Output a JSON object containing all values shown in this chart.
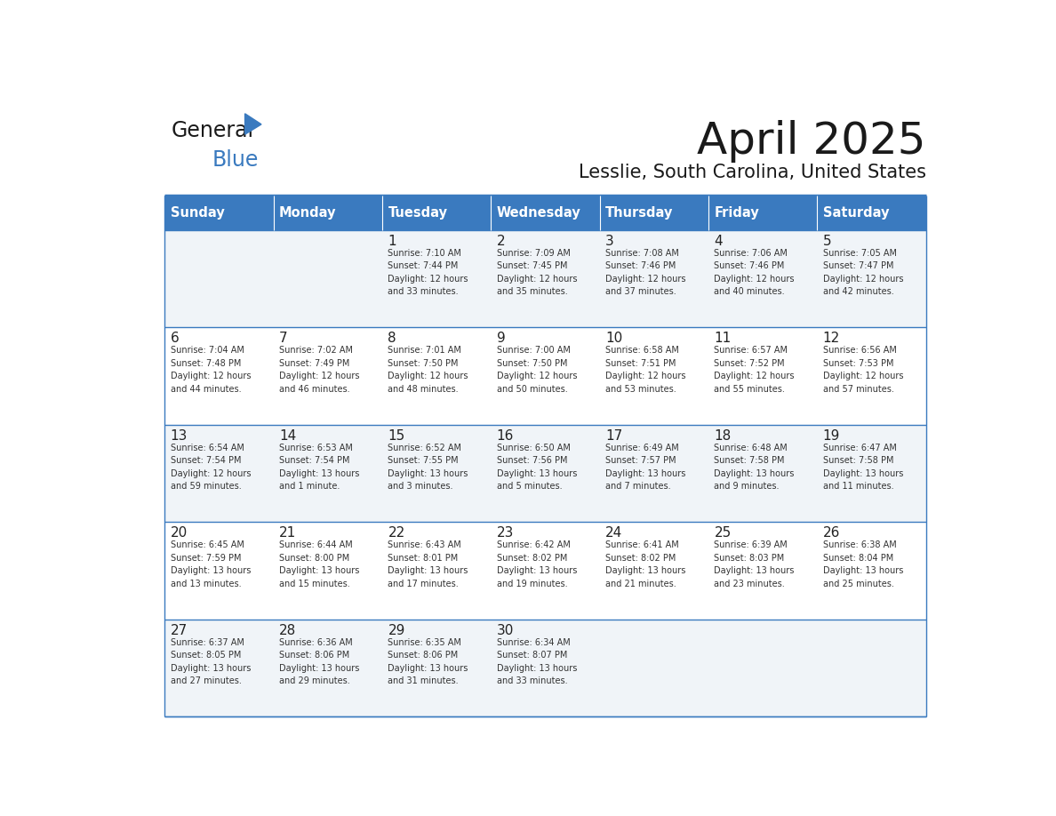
{
  "title": "April 2025",
  "subtitle": "Lesslie, South Carolina, United States",
  "header_bg": "#3a7abf",
  "header_text_color": "#ffffff",
  "days_of_week": [
    "Sunday",
    "Monday",
    "Tuesday",
    "Wednesday",
    "Thursday",
    "Friday",
    "Saturday"
  ],
  "row_bg_odd": "#f0f4f8",
  "row_bg_even": "#ffffff",
  "cell_text_color": "#333333",
  "day_num_color": "#222222",
  "title_color": "#1a1a1a",
  "subtitle_color": "#1a1a1a",
  "divider_color": "#3a7abf",
  "logo_text_color": "#1a1a1a",
  "logo_blue_color": "#3a7abf",
  "calendar_data": [
    [
      {
        "day": null,
        "info": null
      },
      {
        "day": null,
        "info": null
      },
      {
        "day": 1,
        "info": "Sunrise: 7:10 AM\nSunset: 7:44 PM\nDaylight: 12 hours\nand 33 minutes."
      },
      {
        "day": 2,
        "info": "Sunrise: 7:09 AM\nSunset: 7:45 PM\nDaylight: 12 hours\nand 35 minutes."
      },
      {
        "day": 3,
        "info": "Sunrise: 7:08 AM\nSunset: 7:46 PM\nDaylight: 12 hours\nand 37 minutes."
      },
      {
        "day": 4,
        "info": "Sunrise: 7:06 AM\nSunset: 7:46 PM\nDaylight: 12 hours\nand 40 minutes."
      },
      {
        "day": 5,
        "info": "Sunrise: 7:05 AM\nSunset: 7:47 PM\nDaylight: 12 hours\nand 42 minutes."
      }
    ],
    [
      {
        "day": 6,
        "info": "Sunrise: 7:04 AM\nSunset: 7:48 PM\nDaylight: 12 hours\nand 44 minutes."
      },
      {
        "day": 7,
        "info": "Sunrise: 7:02 AM\nSunset: 7:49 PM\nDaylight: 12 hours\nand 46 minutes."
      },
      {
        "day": 8,
        "info": "Sunrise: 7:01 AM\nSunset: 7:50 PM\nDaylight: 12 hours\nand 48 minutes."
      },
      {
        "day": 9,
        "info": "Sunrise: 7:00 AM\nSunset: 7:50 PM\nDaylight: 12 hours\nand 50 minutes."
      },
      {
        "day": 10,
        "info": "Sunrise: 6:58 AM\nSunset: 7:51 PM\nDaylight: 12 hours\nand 53 minutes."
      },
      {
        "day": 11,
        "info": "Sunrise: 6:57 AM\nSunset: 7:52 PM\nDaylight: 12 hours\nand 55 minutes."
      },
      {
        "day": 12,
        "info": "Sunrise: 6:56 AM\nSunset: 7:53 PM\nDaylight: 12 hours\nand 57 minutes."
      }
    ],
    [
      {
        "day": 13,
        "info": "Sunrise: 6:54 AM\nSunset: 7:54 PM\nDaylight: 12 hours\nand 59 minutes."
      },
      {
        "day": 14,
        "info": "Sunrise: 6:53 AM\nSunset: 7:54 PM\nDaylight: 13 hours\nand 1 minute."
      },
      {
        "day": 15,
        "info": "Sunrise: 6:52 AM\nSunset: 7:55 PM\nDaylight: 13 hours\nand 3 minutes."
      },
      {
        "day": 16,
        "info": "Sunrise: 6:50 AM\nSunset: 7:56 PM\nDaylight: 13 hours\nand 5 minutes."
      },
      {
        "day": 17,
        "info": "Sunrise: 6:49 AM\nSunset: 7:57 PM\nDaylight: 13 hours\nand 7 minutes."
      },
      {
        "day": 18,
        "info": "Sunrise: 6:48 AM\nSunset: 7:58 PM\nDaylight: 13 hours\nand 9 minutes."
      },
      {
        "day": 19,
        "info": "Sunrise: 6:47 AM\nSunset: 7:58 PM\nDaylight: 13 hours\nand 11 minutes."
      }
    ],
    [
      {
        "day": 20,
        "info": "Sunrise: 6:45 AM\nSunset: 7:59 PM\nDaylight: 13 hours\nand 13 minutes."
      },
      {
        "day": 21,
        "info": "Sunrise: 6:44 AM\nSunset: 8:00 PM\nDaylight: 13 hours\nand 15 minutes."
      },
      {
        "day": 22,
        "info": "Sunrise: 6:43 AM\nSunset: 8:01 PM\nDaylight: 13 hours\nand 17 minutes."
      },
      {
        "day": 23,
        "info": "Sunrise: 6:42 AM\nSunset: 8:02 PM\nDaylight: 13 hours\nand 19 minutes."
      },
      {
        "day": 24,
        "info": "Sunrise: 6:41 AM\nSunset: 8:02 PM\nDaylight: 13 hours\nand 21 minutes."
      },
      {
        "day": 25,
        "info": "Sunrise: 6:39 AM\nSunset: 8:03 PM\nDaylight: 13 hours\nand 23 minutes."
      },
      {
        "day": 26,
        "info": "Sunrise: 6:38 AM\nSunset: 8:04 PM\nDaylight: 13 hours\nand 25 minutes."
      }
    ],
    [
      {
        "day": 27,
        "info": "Sunrise: 6:37 AM\nSunset: 8:05 PM\nDaylight: 13 hours\nand 27 minutes."
      },
      {
        "day": 28,
        "info": "Sunrise: 6:36 AM\nSunset: 8:06 PM\nDaylight: 13 hours\nand 29 minutes."
      },
      {
        "day": 29,
        "info": "Sunrise: 6:35 AM\nSunset: 8:06 PM\nDaylight: 13 hours\nand 31 minutes."
      },
      {
        "day": 30,
        "info": "Sunrise: 6:34 AM\nSunset: 8:07 PM\nDaylight: 13 hours\nand 33 minutes."
      },
      {
        "day": null,
        "info": null
      },
      {
        "day": null,
        "info": null
      },
      {
        "day": null,
        "info": null
      }
    ]
  ]
}
